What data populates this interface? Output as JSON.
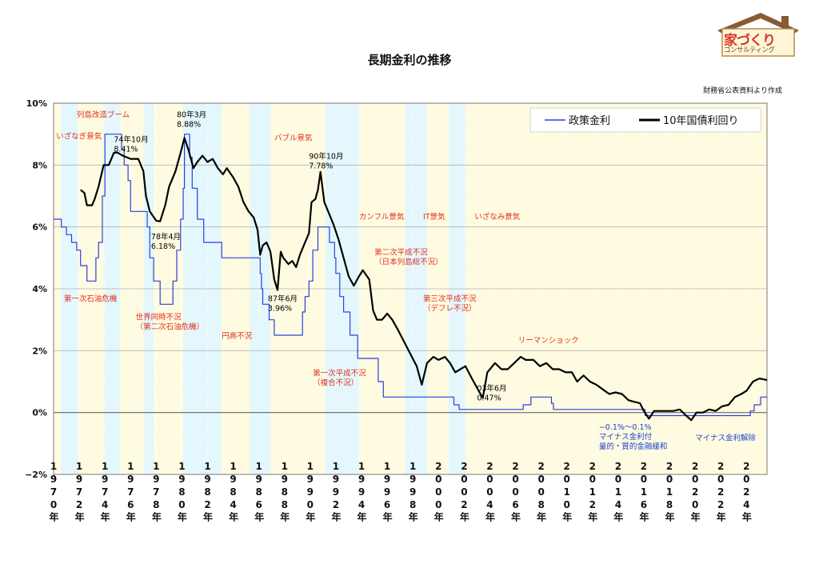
{
  "chart_data": {
    "type": "line",
    "title": "長期金利の推移",
    "source_note": "財務省公表資料より作成",
    "logo": {
      "main": "家づくり",
      "sub": "コンサルティング"
    },
    "x_range": [
      1970,
      2025.6
    ],
    "y_range": [
      -2,
      10
    ],
    "y_ticks": [
      {
        "value": 10,
        "label": "10%"
      },
      {
        "value": 8,
        "label": "8%"
      },
      {
        "value": 6,
        "label": "6%"
      },
      {
        "value": 4,
        "label": "4%"
      },
      {
        "value": 2,
        "label": "2%"
      },
      {
        "value": 0,
        "label": "0%"
      },
      {
        "value": -2,
        "label": "−2%"
      }
    ],
    "x_ticks": [
      {
        "year": 1970,
        "label": "1970年"
      },
      {
        "year": 1972,
        "label": "1972年"
      },
      {
        "year": 1974,
        "label": "1974年"
      },
      {
        "year": 1976,
        "label": "1976年"
      },
      {
        "year": 1978,
        "label": "1978年"
      },
      {
        "year": 1980,
        "label": "1980年"
      },
      {
        "year": 1982,
        "label": "1982年"
      },
      {
        "year": 1984,
        "label": "1984年"
      },
      {
        "year": 1986,
        "label": "1986年"
      },
      {
        "year": 1988,
        "label": "1988年"
      },
      {
        "year": 1990,
        "label": "1990年"
      },
      {
        "year": 1992,
        "label": "1992年"
      },
      {
        "year": 1994,
        "label": "1994年"
      },
      {
        "year": 1996,
        "label": "1996年"
      },
      {
        "year": 1998,
        "label": "1998年"
      },
      {
        "year": 2000,
        "label": "2000年"
      },
      {
        "year": 2002,
        "label": "2002年"
      },
      {
        "year": 2004,
        "label": "2004年"
      },
      {
        "year": 2006,
        "label": "2006年"
      },
      {
        "year": 2008,
        "label": "2008年"
      },
      {
        "year": 2010,
        "label": "2010年"
      },
      {
        "year": 2012,
        "label": "2012年"
      },
      {
        "year": 2014,
        "label": "2014年"
      },
      {
        "year": 2016,
        "label": "2016年"
      },
      {
        "year": 2018,
        "label": "2018年"
      },
      {
        "year": 2020,
        "label": "2020年"
      },
      {
        "year": 2022,
        "label": "2022年"
      },
      {
        "year": 2024,
        "label": "2024年"
      }
    ],
    "legend": {
      "placement": "top-right"
    },
    "phase_bands": [
      {
        "start": 1970.0,
        "end": 1970.6,
        "phase": "boom"
      },
      {
        "start": 1970.6,
        "end": 1971.9,
        "phase": "bust"
      },
      {
        "start": 1971.9,
        "end": 1973.9,
        "phase": "boom"
      },
      {
        "start": 1973.9,
        "end": 1975.2,
        "phase": "bust"
      },
      {
        "start": 1975.2,
        "end": 1977.0,
        "phase": "boom"
      },
      {
        "start": 1977.0,
        "end": 1977.8,
        "phase": "bust"
      },
      {
        "start": 1977.8,
        "end": 1980.1,
        "phase": "boom"
      },
      {
        "start": 1980.1,
        "end": 1983.1,
        "phase": "bust"
      },
      {
        "start": 1983.1,
        "end": 1985.3,
        "phase": "boom"
      },
      {
        "start": 1985.3,
        "end": 1986.9,
        "phase": "bust"
      },
      {
        "start": 1986.9,
        "end": 1991.2,
        "phase": "boom"
      },
      {
        "start": 1991.2,
        "end": 1993.8,
        "phase": "bust"
      },
      {
        "start": 1993.8,
        "end": 1997.4,
        "phase": "boom"
      },
      {
        "start": 1997.4,
        "end": 1999.1,
        "phase": "bust"
      },
      {
        "start": 1999.1,
        "end": 2000.8,
        "phase": "boom"
      },
      {
        "start": 2000.8,
        "end": 2002.1,
        "phase": "bust"
      },
      {
        "start": 2002.1,
        "end": 2008.2,
        "phase": "boom"
      },
      {
        "start": 2008.2,
        "end": 2025.6,
        "phase": "boom"
      }
    ],
    "series": [
      {
        "name": "政策金利",
        "color": "#2b3fe0",
        "step": true,
        "points": [
          [
            1970.0,
            6.25
          ],
          [
            1970.6,
            6.0
          ],
          [
            1971.0,
            5.75
          ],
          [
            1971.4,
            5.5
          ],
          [
            1971.8,
            5.25
          ],
          [
            1972.1,
            4.75
          ],
          [
            1972.6,
            4.25
          ],
          [
            1973.3,
            5.0
          ],
          [
            1973.5,
            5.5
          ],
          [
            1973.8,
            7.0
          ],
          [
            1974.0,
            9.0
          ],
          [
            1975.3,
            8.5
          ],
          [
            1975.5,
            8.0
          ],
          [
            1975.8,
            7.5
          ],
          [
            1976.0,
            6.5
          ],
          [
            1977.3,
            6.0
          ],
          [
            1977.5,
            5.0
          ],
          [
            1977.8,
            4.25
          ],
          [
            1978.3,
            3.5
          ],
          [
            1979.3,
            4.25
          ],
          [
            1979.6,
            5.25
          ],
          [
            1979.9,
            6.25
          ],
          [
            1980.1,
            7.25
          ],
          [
            1980.2,
            9.0
          ],
          [
            1980.6,
            8.25
          ],
          [
            1980.8,
            7.25
          ],
          [
            1981.2,
            6.25
          ],
          [
            1981.7,
            5.5
          ],
          [
            1983.1,
            5.0
          ],
          [
            1986.1,
            4.5
          ],
          [
            1986.2,
            4.0
          ],
          [
            1986.3,
            3.5
          ],
          [
            1986.8,
            3.0
          ],
          [
            1987.2,
            2.5
          ],
          [
            1989.4,
            3.25
          ],
          [
            1989.6,
            3.75
          ],
          [
            1989.9,
            4.25
          ],
          [
            1990.2,
            5.25
          ],
          [
            1990.6,
            6.0
          ],
          [
            1991.5,
            5.5
          ],
          [
            1991.9,
            5.0
          ],
          [
            1992.0,
            4.5
          ],
          [
            1992.3,
            3.75
          ],
          [
            1992.6,
            3.25
          ],
          [
            1993.1,
            2.5
          ],
          [
            1993.7,
            1.75
          ],
          [
            1995.3,
            1.0
          ],
          [
            1995.7,
            0.5
          ],
          [
            2001.2,
            0.25
          ],
          [
            2001.6,
            0.1
          ],
          [
            2006.6,
            0.25
          ],
          [
            2007.2,
            0.5
          ],
          [
            2008.8,
            0.3
          ],
          [
            2008.95,
            0.1
          ],
          [
            2016.1,
            -0.1
          ],
          [
            2024.3,
            0.05
          ],
          [
            2024.6,
            0.25
          ],
          [
            2025.1,
            0.5
          ],
          [
            2025.6,
            0.5
          ]
        ]
      },
      {
        "name": "10年国債利回り",
        "color": "#000000",
        "step": false,
        "points": [
          [
            1972.1,
            7.2
          ],
          [
            1972.4,
            7.1
          ],
          [
            1972.6,
            6.7
          ],
          [
            1973.0,
            6.7
          ],
          [
            1973.2,
            6.9
          ],
          [
            1973.5,
            7.3
          ],
          [
            1973.9,
            8.0
          ],
          [
            1974.3,
            8.0
          ],
          [
            1974.7,
            8.4
          ],
          [
            1975.0,
            8.4
          ],
          [
            1975.4,
            8.3
          ],
          [
            1976.0,
            8.2
          ],
          [
            1976.6,
            8.2
          ],
          [
            1977.0,
            7.8
          ],
          [
            1977.2,
            7.0
          ],
          [
            1977.5,
            6.5
          ],
          [
            1978.0,
            6.2
          ],
          [
            1978.3,
            6.18
          ],
          [
            1978.7,
            6.7
          ],
          [
            1979.0,
            7.3
          ],
          [
            1979.5,
            7.8
          ],
          [
            1979.9,
            8.4
          ],
          [
            1980.2,
            8.88
          ],
          [
            1980.5,
            8.5
          ],
          [
            1980.9,
            7.9
          ],
          [
            1981.2,
            8.1
          ],
          [
            1981.6,
            8.3
          ],
          [
            1982.0,
            8.1
          ],
          [
            1982.4,
            8.2
          ],
          [
            1982.8,
            7.9
          ],
          [
            1983.2,
            7.7
          ],
          [
            1983.5,
            7.9
          ],
          [
            1984.0,
            7.6
          ],
          [
            1984.4,
            7.3
          ],
          [
            1984.8,
            6.8
          ],
          [
            1985.2,
            6.5
          ],
          [
            1985.6,
            6.3
          ],
          [
            1985.9,
            5.9
          ],
          [
            1986.1,
            5.1
          ],
          [
            1986.3,
            5.4
          ],
          [
            1986.6,
            5.5
          ],
          [
            1986.9,
            5.2
          ],
          [
            1987.2,
            4.3
          ],
          [
            1987.45,
            3.96
          ],
          [
            1987.7,
            5.2
          ],
          [
            1987.9,
            5.0
          ],
          [
            1988.3,
            4.8
          ],
          [
            1988.6,
            4.9
          ],
          [
            1988.9,
            4.7
          ],
          [
            1989.2,
            5.1
          ],
          [
            1989.5,
            5.4
          ],
          [
            1989.9,
            5.8
          ],
          [
            1990.1,
            6.8
          ],
          [
            1990.4,
            6.9
          ],
          [
            1990.6,
            7.2
          ],
          [
            1990.8,
            7.78
          ],
          [
            1991.1,
            6.8
          ],
          [
            1991.4,
            6.5
          ],
          [
            1991.8,
            6.1
          ],
          [
            1992.2,
            5.6
          ],
          [
            1992.6,
            5.0
          ],
          [
            1993.0,
            4.4
          ],
          [
            1993.4,
            4.1
          ],
          [
            1993.8,
            4.4
          ],
          [
            1994.1,
            4.6
          ],
          [
            1994.6,
            4.3
          ],
          [
            1994.9,
            3.3
          ],
          [
            1995.2,
            3.0
          ],
          [
            1995.6,
            3.0
          ],
          [
            1996.0,
            3.2
          ],
          [
            1996.4,
            3.0
          ],
          [
            1996.8,
            2.7
          ],
          [
            1997.3,
            2.3
          ],
          [
            1997.8,
            1.9
          ],
          [
            1998.3,
            1.5
          ],
          [
            1998.7,
            0.9
          ],
          [
            1999.1,
            1.6
          ],
          [
            1999.6,
            1.8
          ],
          [
            2000.0,
            1.7
          ],
          [
            2000.5,
            1.8
          ],
          [
            2000.9,
            1.6
          ],
          [
            2001.3,
            1.3
          ],
          [
            2001.7,
            1.4
          ],
          [
            2002.1,
            1.5
          ],
          [
            2002.6,
            1.1
          ],
          [
            2003.0,
            0.8
          ],
          [
            2003.45,
            0.47
          ],
          [
            2003.8,
            1.3
          ],
          [
            2004.4,
            1.6
          ],
          [
            2004.9,
            1.4
          ],
          [
            2005.4,
            1.4
          ],
          [
            2005.9,
            1.6
          ],
          [
            2006.4,
            1.8
          ],
          [
            2006.8,
            1.7
          ],
          [
            2007.4,
            1.7
          ],
          [
            2007.9,
            1.5
          ],
          [
            2008.4,
            1.6
          ],
          [
            2008.9,
            1.4
          ],
          [
            2009.4,
            1.4
          ],
          [
            2009.9,
            1.3
          ],
          [
            2010.4,
            1.3
          ],
          [
            2010.8,
            1.0
          ],
          [
            2011.3,
            1.2
          ],
          [
            2011.8,
            1.0
          ],
          [
            2012.3,
            0.9
          ],
          [
            2012.8,
            0.75
          ],
          [
            2013.3,
            0.6
          ],
          [
            2013.8,
            0.65
          ],
          [
            2014.3,
            0.6
          ],
          [
            2014.8,
            0.4
          ],
          [
            2015.2,
            0.35
          ],
          [
            2015.7,
            0.3
          ],
          [
            2016.0,
            0.05
          ],
          [
            2016.4,
            -0.2
          ],
          [
            2016.8,
            0.05
          ],
          [
            2017.3,
            0.05
          ],
          [
            2017.8,
            0.05
          ],
          [
            2018.3,
            0.05
          ],
          [
            2018.8,
            0.1
          ],
          [
            2019.3,
            -0.1
          ],
          [
            2019.7,
            -0.25
          ],
          [
            2020.1,
            0.0
          ],
          [
            2020.6,
            0.0
          ],
          [
            2021.1,
            0.1
          ],
          [
            2021.6,
            0.05
          ],
          [
            2022.1,
            0.2
          ],
          [
            2022.6,
            0.25
          ],
          [
            2023.1,
            0.5
          ],
          [
            2023.6,
            0.6
          ],
          [
            2024.0,
            0.7
          ],
          [
            2024.5,
            1.0
          ],
          [
            2025.0,
            1.1
          ],
          [
            2025.6,
            1.05
          ]
        ]
      }
    ],
    "annotations": [
      {
        "text": "いざなぎ景気",
        "x": 1970.2,
        "y": 8.85,
        "color": "#e03020",
        "lines": [
          "いざなぎ景気"
        ]
      },
      {
        "text": "列島改造ブーム",
        "x": 1971.8,
        "y": 9.55,
        "color": "#e03020",
        "lines": [
          "列島改造ブーム"
        ]
      },
      {
        "text": "74年10月 8.41%",
        "x": 1974.7,
        "y": 8.75,
        "color": "#000",
        "lines": [
          "74年10月",
          "8.41%"
        ]
      },
      {
        "text": "80年3月 8.88%",
        "x": 1979.6,
        "y": 9.55,
        "color": "#000",
        "lines": [
          "80年3月",
          "8.88%"
        ]
      },
      {
        "text": "バブル景気",
        "x": 1987.2,
        "y": 8.8,
        "color": "#e03020",
        "lines": [
          "バブル景気"
        ]
      },
      {
        "text": "90年10月 7.78%",
        "x": 1989.9,
        "y": 8.2,
        "color": "#000",
        "lines": [
          "90年10月",
          "7.78%"
        ]
      },
      {
        "text": "78年4月 6.18%",
        "x": 1977.6,
        "y": 5.6,
        "color": "#000",
        "lines": [
          "78年4月",
          "6.18%"
        ]
      },
      {
        "text": "カンフル景気",
        "x": 1993.8,
        "y": 6.25,
        "color": "#e03020",
        "lines": [
          "カンフル景気"
        ]
      },
      {
        "text": "IT景気",
        "x": 1998.8,
        "y": 6.25,
        "color": "#e03020",
        "lines": [
          "IT景気"
        ]
      },
      {
        "text": "いざなみ景気",
        "x": 2002.8,
        "y": 6.25,
        "color": "#e03020",
        "lines": [
          "いざなみ景気"
        ]
      },
      {
        "text": "第二次平成不況 (日本列島総不況)",
        "x": 1995.0,
        "y": 5.1,
        "color": "#e03020",
        "lines": [
          "第二次平成不況",
          "（日本列島総不況）"
        ]
      },
      {
        "text": "第一次石油危機",
        "x": 1970.8,
        "y": 3.6,
        "color": "#e03020",
        "lines": [
          "第一次石油危機"
        ]
      },
      {
        "text": "87年6月 3.96%",
        "x": 1986.7,
        "y": 3.6,
        "color": "#000",
        "lines": [
          "87年6月",
          "3.96%"
        ]
      },
      {
        "text": "第三次平成不況 (デフレ不況)",
        "x": 1998.8,
        "y": 3.6,
        "color": "#e03020",
        "lines": [
          "第三次平成不況",
          "（デフレ不況）"
        ]
      },
      {
        "text": "世界同時不況 (第二次石油危機)",
        "x": 1976.4,
        "y": 3.0,
        "color": "#e03020",
        "lines": [
          "世界同時不況",
          "（第二次石油危機）"
        ]
      },
      {
        "text": "円高不況",
        "x": 1983.1,
        "y": 2.4,
        "color": "#e03020",
        "lines": [
          "円高不況"
        ]
      },
      {
        "text": "リーマンショック",
        "x": 2006.2,
        "y": 2.25,
        "color": "#e03020",
        "lines": [
          "リーマンショック"
        ]
      },
      {
        "text": "第一次平成不況 (複合不況)",
        "x": 1990.2,
        "y": 1.2,
        "color": "#e03020",
        "lines": [
          "第一次平成不況",
          "（複合不況）"
        ]
      },
      {
        "text": "03年6月 0.47%",
        "x": 2003.0,
        "y": 0.7,
        "color": "#000",
        "lines": [
          "03年6月",
          "0.47%"
        ]
      },
      {
        "text": "−0.1%～0.1% マイナス金利付 量的・質的金融緩和",
        "x": 2012.5,
        "y": -0.55,
        "color": "#1a3fd0",
        "lines": [
          "−0.1%～0.1%",
          "マイナス金利付",
          "量的・質的金融緩和"
        ]
      },
      {
        "text": "マイナス金利解除",
        "x": 2020.0,
        "y": -0.9,
        "color": "#1a3fd0",
        "lines": [
          "マイナス金利解除"
        ]
      }
    ]
  }
}
